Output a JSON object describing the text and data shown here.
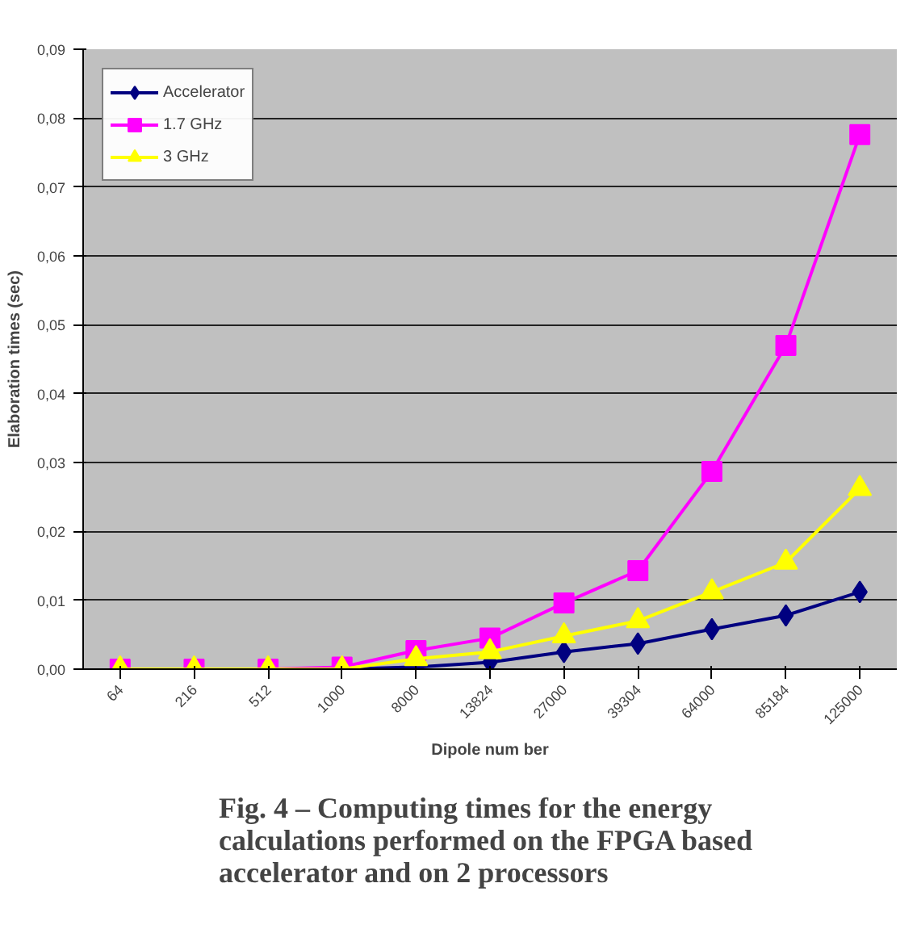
{
  "chart_data": {
    "type": "line",
    "title": "Fig. 4 – Computing times for the energy\ncalculations  performed on the FPGA based\naccelerator and on  2 processors",
    "xlabel": "Dipole num ber",
    "ylabel": "Elaboration times (sec)",
    "categories": [
      "64",
      "216",
      "512",
      "1000",
      "8000",
      "13824",
      "27000",
      "39304",
      "64000",
      "85184",
      "125000"
    ],
    "series": [
      {
        "name": "Accelerator",
        "color": "#000080",
        "marker": "diamond",
        "values": [
          null,
          null,
          0,
          0,
          0.0003,
          0.001,
          0.0025,
          0.0037,
          0.0058,
          0.0078,
          0.0112
        ]
      },
      {
        "name": "1.7 GHz",
        "color": "#ff00ff",
        "marker": "square",
        "values": [
          0,
          0,
          0,
          0.0003,
          0.0027,
          0.0045,
          0.0096,
          0.0143,
          0.0287,
          0.047,
          0.0776
        ]
      },
      {
        "name": "3 GHz",
        "color": "#ffff00",
        "marker": "triangle",
        "values": [
          0,
          0,
          0,
          0,
          0.0015,
          0.0025,
          0.0048,
          0.007,
          0.0112,
          0.0155,
          0.0262
        ]
      }
    ],
    "ylim": [
      0,
      0.09
    ],
    "yticks": [
      {
        "value": 0,
        "label": "0,00"
      },
      {
        "value": 0.01,
        "label": "0,01"
      },
      {
        "value": 0.02,
        "label": "0,02"
      },
      {
        "value": 0.03,
        "label": "0,03"
      },
      {
        "value": 0.04,
        "label": "0,04"
      },
      {
        "value": 0.05,
        "label": "0,05"
      },
      {
        "value": 0.06,
        "label": "0,06"
      },
      {
        "value": 0.07,
        "label": "0,07"
      },
      {
        "value": 0.08,
        "label": "0,08"
      },
      {
        "value": 0.09,
        "label": "0,09"
      }
    ],
    "grid": "y",
    "legend": "top left",
    "line_style": "solid"
  }
}
